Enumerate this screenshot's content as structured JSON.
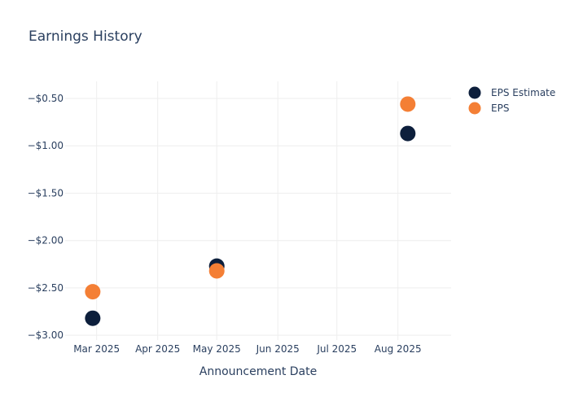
{
  "chart_data": {
    "type": "scatter",
    "title": "Earnings History",
    "xlabel": "Announcement Date",
    "ylabel": "",
    "x_ticks": [
      "Mar 2025",
      "Apr 2025",
      "May 2025",
      "Jun 2025",
      "Jul 2025",
      "Aug 2025"
    ],
    "x_tick_dates": [
      "2025-03-01",
      "2025-04-01",
      "2025-05-01",
      "2025-06-01",
      "2025-07-01",
      "2025-08-01"
    ],
    "xlim": [
      "2025-02-13",
      "2025-08-28"
    ],
    "y_ticks": [
      -0.5,
      -1.0,
      -1.5,
      -2.0,
      -2.5,
      -3.0
    ],
    "y_tick_labels": [
      "−$0.50",
      "−$1.00",
      "−$1.50",
      "−$2.00",
      "−$2.50",
      "−$3.00"
    ],
    "ylim": [
      -3.05,
      -0.32
    ],
    "grid": true,
    "legend_position": "top-right",
    "series": [
      {
        "name": "EPS Estimate",
        "color": "#0d1f3c",
        "points": [
          {
            "x": "2025-02-27",
            "y": -2.82
          },
          {
            "x": "2025-05-01",
            "y": -2.27
          },
          {
            "x": "2025-08-06",
            "y": -0.87
          }
        ]
      },
      {
        "name": "EPS",
        "color": "#f47f35",
        "points": [
          {
            "x": "2025-02-27",
            "y": -2.54
          },
          {
            "x": "2025-05-01",
            "y": -2.32
          },
          {
            "x": "2025-08-06",
            "y": -0.56
          }
        ]
      }
    ]
  }
}
